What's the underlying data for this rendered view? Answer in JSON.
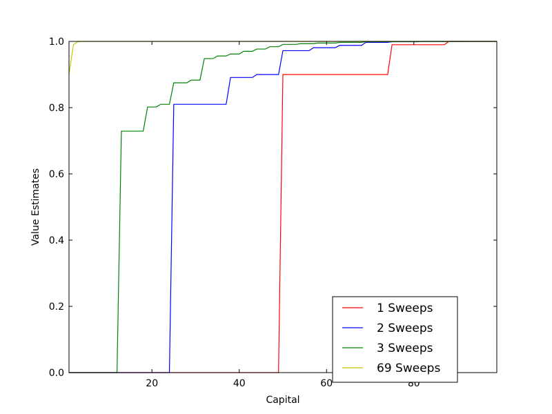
{
  "chart_data": {
    "type": "line",
    "title": "",
    "xlabel": "Capital",
    "ylabel": "Value Estimates",
    "xlim": [
      1,
      99
    ],
    "ylim": [
      0.0,
      1.0
    ],
    "x_ticks": [
      20,
      40,
      60,
      80
    ],
    "x_tick_labels": [
      "20",
      "40",
      "60",
      "80"
    ],
    "y_ticks": [
      0.0,
      0.2,
      0.4,
      0.6,
      0.8,
      1.0
    ],
    "y_tick_labels": [
      "0.0",
      "0.2",
      "0.4",
      "0.6",
      "0.8",
      "1.0"
    ],
    "grid": false,
    "legend_position": "bottom-right",
    "series": [
      {
        "name": "1 Sweeps",
        "color": "#ff0000",
        "x": [
          1,
          49,
          50,
          74,
          75,
          87,
          88,
          99
        ],
        "y": [
          0.0,
          0.0,
          0.9,
          0.9,
          0.99,
          0.99,
          1.0,
          1.0
        ]
      },
      {
        "name": "2 Sweeps",
        "color": "#0000ff",
        "x": [
          1,
          24,
          25,
          37,
          38,
          43,
          44,
          49,
          50,
          56,
          57,
          62,
          63,
          68,
          69,
          74,
          75,
          81,
          82,
          99
        ],
        "y": [
          0.0,
          0.0,
          0.81,
          0.81,
          0.891,
          0.891,
          0.9,
          0.9,
          0.972,
          0.972,
          0.981,
          0.981,
          0.988,
          0.988,
          0.997,
          0.997,
          0.999,
          0.999,
          1.0,
          1.0
        ]
      },
      {
        "name": "3 Sweeps",
        "color": "#008000",
        "x": [
          1,
          12,
          13,
          18,
          19,
          21,
          22,
          24,
          25,
          28,
          29,
          31,
          32,
          34,
          35,
          37,
          38,
          40,
          41,
          43,
          44,
          46,
          47,
          49,
          50,
          53,
          54,
          57,
          58,
          62,
          63,
          68,
          69,
          99
        ],
        "y": [
          0.0,
          0.0,
          0.729,
          0.729,
          0.802,
          0.802,
          0.81,
          0.81,
          0.875,
          0.875,
          0.883,
          0.883,
          0.948,
          0.948,
          0.956,
          0.956,
          0.962,
          0.962,
          0.97,
          0.97,
          0.977,
          0.977,
          0.984,
          0.984,
          0.991,
          0.991,
          0.993,
          0.993,
          0.995,
          0.995,
          0.997,
          0.997,
          0.999,
          1.0
        ]
      },
      {
        "name": "69 Sweeps",
        "color": "#c8c800",
        "x": [
          1,
          2,
          3,
          4,
          99
        ],
        "y": [
          0.9,
          0.99,
          0.999,
          1.0,
          1.0
        ]
      }
    ]
  }
}
